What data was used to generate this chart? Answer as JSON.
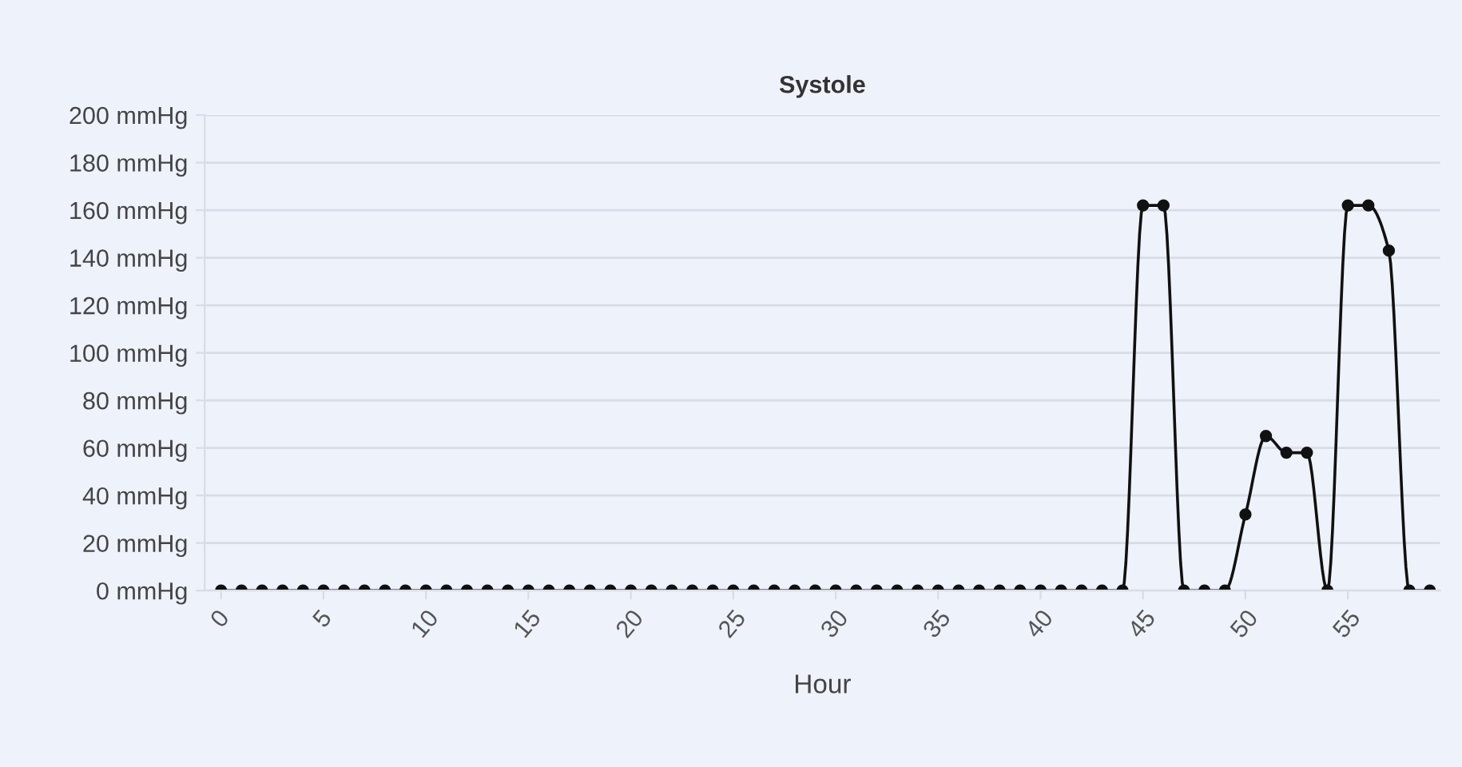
{
  "chart_data": {
    "type": "line",
    "title": "Systole",
    "xlabel": "Hour",
    "x": [
      0,
      1,
      2,
      3,
      4,
      5,
      6,
      7,
      8,
      9,
      10,
      11,
      12,
      13,
      14,
      15,
      16,
      17,
      18,
      19,
      20,
      21,
      22,
      23,
      24,
      25,
      26,
      27,
      28,
      29,
      30,
      31,
      32,
      33,
      34,
      35,
      36,
      37,
      38,
      39,
      40,
      41,
      42,
      43,
      44,
      45,
      46,
      47,
      48,
      49,
      50,
      51,
      52,
      53,
      54,
      55,
      56,
      57,
      58,
      59
    ],
    "series": [
      {
        "color": "#111111",
        "values": [
          0,
          0,
          0,
          0,
          0,
          0,
          0,
          0,
          0,
          0,
          0,
          0,
          0,
          0,
          0,
          0,
          0,
          0,
          0,
          0,
          0,
          0,
          0,
          0,
          0,
          0,
          0,
          0,
          0,
          0,
          0,
          0,
          0,
          0,
          0,
          0,
          0,
          0,
          0,
          0,
          0,
          0,
          0,
          0,
          0,
          162,
          162,
          0,
          0,
          0,
          32,
          65,
          58,
          58,
          0,
          162,
          162,
          143,
          0,
          0
        ]
      }
    ],
    "xlim": [
      -0.8,
      59.5
    ],
    "xticks": [
      0,
      5,
      10,
      15,
      20,
      25,
      30,
      35,
      40,
      45,
      50,
      55
    ],
    "ylim": [
      0,
      200
    ],
    "yticks": [
      {
        "value": 0,
        "label": "0 mmHg"
      },
      {
        "value": 20,
        "label": "20 mmHg"
      },
      {
        "value": 40,
        "label": "40 mmHg"
      },
      {
        "value": 60,
        "label": "60 mmHg"
      },
      {
        "value": 80,
        "label": "80 mmHg"
      },
      {
        "value": 100,
        "label": "100 mmHg"
      },
      {
        "value": 120,
        "label": "120 mmHg"
      },
      {
        "value": 140,
        "label": "140 mmHg"
      },
      {
        "value": 160,
        "label": "160 mmHg"
      },
      {
        "value": 180,
        "label": "180 mmHg"
      },
      {
        "value": 200,
        "label": "200 mmHg"
      }
    ],
    "grid": "y",
    "marker": "circle",
    "line_style": "solid"
  }
}
